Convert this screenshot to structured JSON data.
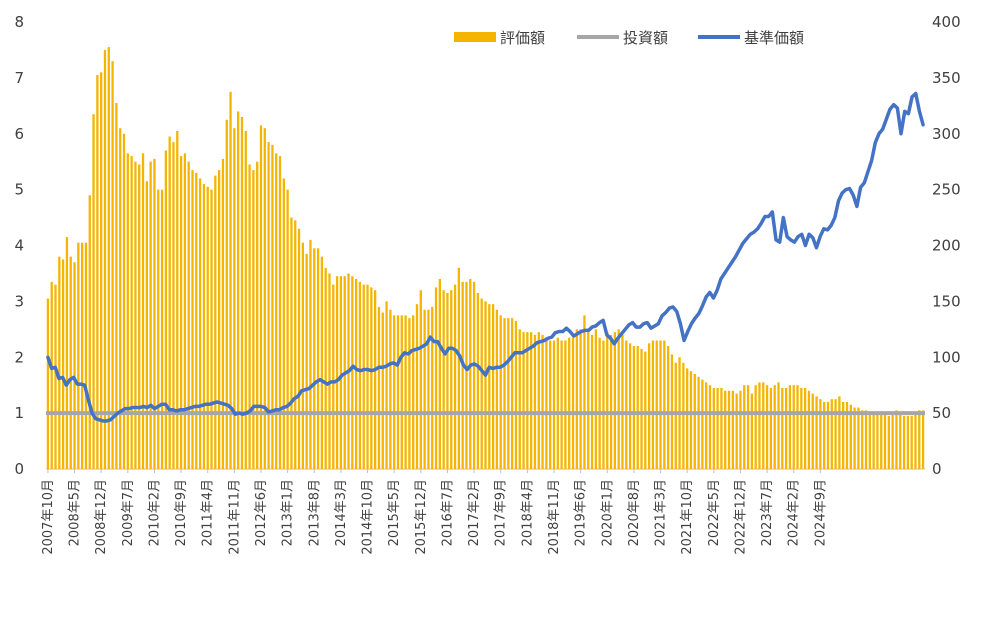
{
  "chart_data": {
    "type": "bar+line",
    "title": "",
    "colors": {
      "bars": "#F4B400",
      "invest_line": "#A6A6A6",
      "nav_line": "#4472C4",
      "axis": "#BFBFBF",
      "text": "#404040"
    },
    "legend": {
      "position": "top-right",
      "entries": [
        "評価額",
        "投資額",
        "基準価額"
      ]
    },
    "left_axis": {
      "min": 0,
      "max": 8,
      "ticks": [
        "0",
        "1",
        "2",
        "3",
        "4",
        "5",
        "6",
        "7",
        "8"
      ]
    },
    "right_axis": {
      "min": 0,
      "max": 400,
      "ticks": [
        "0",
        "50",
        "100",
        "150",
        "200",
        "250",
        "300",
        "350",
        "400"
      ]
    },
    "x_tick_labels": [
      "2007年10月",
      "2008年5月",
      "2008年12月",
      "2009年7月",
      "2010年2月",
      "2010年9月",
      "2011年4月",
      "2011年11月",
      "2012年6月",
      "2013年1月",
      "2013年8月",
      "2014年3月",
      "2014年10月",
      "2015年5月",
      "2015年12月",
      "2016年7月",
      "2017年2月",
      "2017年9月",
      "2018年4月",
      "2018年11月",
      "2019年6月",
      "2020年1月",
      "2020年8月",
      "2021年3月",
      "2021年10月",
      "2022年5月",
      "2022年12月",
      "2023年7月",
      "2024年2月",
      "2024年9月"
    ],
    "series": [
      {
        "name": "評価額",
        "type": "bar",
        "axis": "left",
        "values": [
          3.05,
          3.35,
          3.3,
          3.8,
          3.75,
          4.15,
          3.8,
          3.7,
          4.05,
          4.05,
          4.05,
          4.9,
          6.35,
          7.05,
          7.1,
          7.5,
          7.55,
          7.3,
          6.55,
          6.1,
          6.0,
          5.65,
          5.6,
          5.5,
          5.45,
          5.65,
          5.15,
          5.5,
          5.55,
          5.0,
          5.0,
          5.7,
          5.95,
          5.85,
          6.05,
          5.6,
          5.65,
          5.5,
          5.35,
          5.3,
          5.2,
          5.1,
          5.05,
          5.0,
          5.25,
          5.35,
          5.55,
          6.25,
          6.75,
          6.1,
          6.4,
          6.3,
          6.05,
          5.45,
          5.35,
          5.5,
          6.15,
          6.1,
          5.85,
          5.8,
          5.65,
          5.6,
          5.2,
          5.0,
          4.5,
          4.45,
          4.3,
          4.05,
          3.85,
          4.1,
          3.95,
          3.95,
          3.8,
          3.6,
          3.5,
          3.3,
          3.45,
          3.45,
          3.45,
          3.5,
          3.45,
          3.4,
          3.35,
          3.3,
          3.3,
          3.25,
          3.2,
          2.9,
          2.8,
          3.0,
          2.85,
          2.75,
          2.75,
          2.75,
          2.75,
          2.7,
          2.75,
          2.95,
          3.2,
          2.85,
          2.85,
          2.9,
          3.25,
          3.4,
          3.2,
          3.15,
          3.2,
          3.3,
          3.6,
          3.35,
          3.35,
          3.4,
          3.35,
          3.15,
          3.05,
          3.0,
          2.95,
          2.95,
          2.85,
          2.75,
          2.7,
          2.7,
          2.7,
          2.65,
          2.5,
          2.45,
          2.45,
          2.45,
          2.4,
          2.45,
          2.4,
          2.35,
          2.3,
          2.3,
          2.35,
          2.3,
          2.3,
          2.35,
          2.35,
          2.5,
          2.5,
          2.75,
          2.45,
          2.4,
          2.5,
          2.35,
          2.3,
          2.45,
          2.4,
          2.45,
          2.5,
          2.4,
          2.3,
          2.25,
          2.2,
          2.2,
          2.15,
          2.1,
          2.25,
          2.3,
          2.3,
          2.3,
          2.3,
          2.2,
          2.05,
          1.9,
          2.0,
          1.9,
          1.8,
          1.75,
          1.7,
          1.65,
          1.6,
          1.55,
          1.5,
          1.45,
          1.45,
          1.45,
          1.4,
          1.4,
          1.4,
          1.35,
          1.4,
          1.5,
          1.5,
          1.35,
          1.5,
          1.55,
          1.55,
          1.5,
          1.45,
          1.5,
          1.55,
          1.45,
          1.45,
          1.5,
          1.5,
          1.5,
          1.45,
          1.45,
          1.4,
          1.35,
          1.3,
          1.25,
          1.2,
          1.2,
          1.25,
          1.25,
          1.3,
          1.2,
          1.2,
          1.15,
          1.1,
          1.1,
          1.05,
          1.05,
          1.0,
          1.0,
          1.0,
          1.0,
          1.0,
          0.95,
          1.0,
          1.05,
          1.0,
          0.95,
          0.95,
          0.95,
          1.0,
          1.05,
          1.05
        ]
      },
      {
        "name": "投資額",
        "type": "line",
        "axis": "left",
        "constant": 1
      },
      {
        "name": "基準価額",
        "type": "line",
        "axis": "right",
        "values": [
          100,
          90,
          91,
          81,
          82,
          75,
          80,
          82,
          76,
          76,
          75,
          62,
          50,
          45,
          44,
          43,
          43,
          44,
          47,
          50,
          52,
          54,
          54,
          55,
          55,
          55,
          56,
          55,
          57,
          54,
          56,
          58,
          58,
          53,
          53,
          52,
          53,
          53,
          54,
          55,
          56,
          56,
          57,
          58,
          58,
          59,
          60,
          59,
          58,
          57,
          54,
          49,
          50,
          49,
          50,
          52,
          56,
          56,
          56,
          55,
          51,
          52,
          53,
          53,
          55,
          56,
          59,
          63,
          65,
          70,
          71,
          72,
          75,
          78,
          80,
          78,
          76,
          78,
          78,
          80,
          84,
          86,
          88,
          92,
          89,
          88,
          89,
          89,
          88,
          89,
          91,
          91,
          92,
          94,
          95,
          93,
          100,
          104,
          103,
          106,
          107,
          108,
          110,
          112,
          118,
          114,
          114,
          108,
          103,
          108,
          108,
          106,
          101,
          93,
          89,
          93,
          94,
          92,
          88,
          84,
          91,
          90,
          91,
          91,
          93,
          96,
          100,
          104,
          104,
          104,
          106,
          108,
          110,
          113,
          114,
          115,
          117,
          118,
          122,
          123,
          123,
          126,
          123,
          119,
          121,
          123,
          124,
          124,
          127,
          128,
          131,
          133,
          120,
          117,
          112,
          117,
          121,
          125,
          129,
          131,
          127,
          127,
          130,
          131,
          126,
          128,
          130,
          137,
          140,
          144,
          145,
          141,
          130,
          115,
          123,
          130,
          135,
          139,
          146,
          154,
          158,
          153,
          160,
          170,
          175,
          180,
          185,
          190,
          196,
          202,
          206,
          210,
          212,
          215,
          220,
          226,
          226,
          230,
          205,
          203,
          225,
          208,
          205,
          203,
          208,
          210,
          200,
          210,
          207,
          198,
          208,
          215,
          214,
          218,
          225,
          240,
          247,
          250,
          251,
          245,
          235,
          252,
          256,
          266,
          276,
          292,
          300,
          304,
          313,
          322,
          326,
          323,
          300,
          320,
          318,
          333,
          336,
          320,
          308
        ]
      }
    ]
  }
}
